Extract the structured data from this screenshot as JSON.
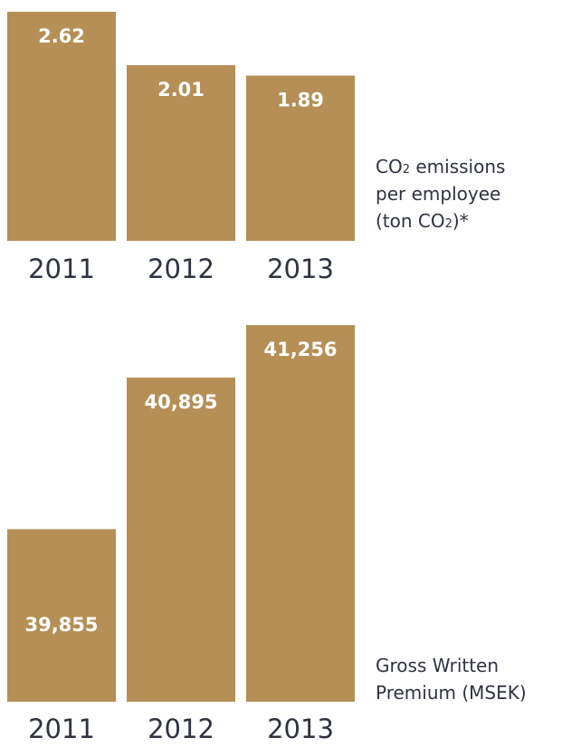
{
  "colors": {
    "bar": "#b58f55",
    "value_text": "#ffffff",
    "label_text": "#2e3340"
  },
  "chart_data": [
    {
      "type": "bar",
      "categories": [
        "2011",
        "2012",
        "2013"
      ],
      "values": [
        2.62,
        2.01,
        1.89
      ],
      "value_labels": [
        "2.62",
        "2.01",
        "1.89"
      ],
      "caption_lines": [
        [
          {
            "t": "CO"
          },
          {
            "t": "2",
            "sub": true
          },
          {
            "t": " emissions"
          }
        ],
        [
          {
            "t": "per employee"
          }
        ],
        [
          {
            "t": "(ton CO"
          },
          {
            "t": "2",
            "sub": true
          },
          {
            "t": ")*"
          }
        ]
      ],
      "label_position": "right"
    },
    {
      "type": "bar",
      "categories": [
        "2011",
        "2012",
        "2013"
      ],
      "values": [
        39855,
        40895,
        41256
      ],
      "value_labels": [
        "39,855",
        "40,895",
        "41,256"
      ],
      "caption_lines": [
        [
          {
            "t": "Gross Written"
          }
        ],
        [
          {
            "t": "Premium (MSEK)"
          }
        ]
      ],
      "label_position": "right"
    }
  ]
}
